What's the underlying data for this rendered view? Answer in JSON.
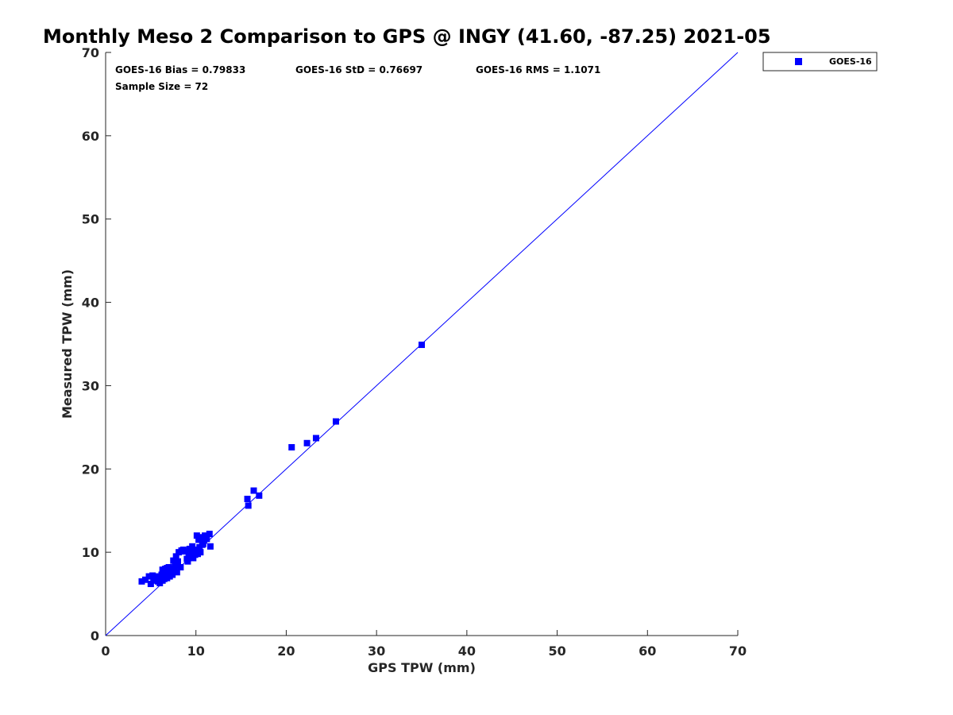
{
  "chart_data": {
    "type": "scatter",
    "title": "Monthly Meso 2 Comparison to GPS @ INGY (41.60, -87.25) 2021-05",
    "xlabel": "GPS TPW (mm)",
    "ylabel": "Measured TPW (mm)",
    "xlim": [
      0,
      70
    ],
    "ylim": [
      0,
      70
    ],
    "xticks": [
      0,
      10,
      20,
      30,
      40,
      50,
      60,
      70
    ],
    "yticks": [
      0,
      10,
      20,
      30,
      40,
      50,
      60,
      70
    ],
    "grid": false,
    "legend_position": "outside-top-right",
    "reference_line": {
      "from": [
        0,
        0
      ],
      "to": [
        70,
        70
      ],
      "color": "#0000ff"
    },
    "stats": {
      "bias": "GOES-16 Bias = 0.79833",
      "std": "GOES-16 StD = 0.76697",
      "rms": "GOES-16 RMS = 1.1071",
      "sample_size": "Sample Size = 72"
    },
    "series": [
      {
        "name": "GOES-16",
        "color": "#0000ff",
        "marker": "square",
        "points": [
          [
            4.0,
            6.5
          ],
          [
            4.4,
            6.7
          ],
          [
            4.8,
            7.1
          ],
          [
            5.0,
            6.2
          ],
          [
            5.2,
            7.2
          ],
          [
            5.4,
            6.8
          ],
          [
            5.6,
            7.1
          ],
          [
            5.8,
            6.5
          ],
          [
            5.9,
            7.0
          ],
          [
            6.0,
            6.3
          ],
          [
            6.1,
            6.9
          ],
          [
            6.2,
            7.3
          ],
          [
            6.3,
            6.6
          ],
          [
            6.4,
            7.6
          ],
          [
            6.5,
            7.0
          ],
          [
            6.6,
            8.0
          ],
          [
            6.7,
            7.4
          ],
          [
            6.8,
            6.9
          ],
          [
            6.9,
            7.7
          ],
          [
            7.0,
            8.2
          ],
          [
            7.1,
            7.1
          ],
          [
            7.2,
            7.6
          ],
          [
            7.3,
            8.0
          ],
          [
            7.4,
            7.3
          ],
          [
            7.5,
            9.0
          ],
          [
            7.6,
            7.8
          ],
          [
            7.7,
            8.4
          ],
          [
            7.8,
            9.5
          ],
          [
            7.9,
            7.6
          ],
          [
            8.0,
            8.9
          ],
          [
            8.1,
            10.0
          ],
          [
            8.3,
            8.2
          ],
          [
            8.6,
            10.3
          ],
          [
            8.8,
            10.1
          ],
          [
            9.0,
            9.2
          ],
          [
            9.1,
            8.9
          ],
          [
            9.3,
            10.4
          ],
          [
            9.5,
            10.0
          ],
          [
            9.6,
            10.7
          ],
          [
            9.7,
            9.3
          ],
          [
            9.9,
            9.7
          ],
          [
            10.0,
            10.3
          ],
          [
            10.1,
            12.0
          ],
          [
            10.2,
            9.8
          ],
          [
            10.3,
            11.5
          ],
          [
            10.4,
            10.6
          ],
          [
            10.5,
            10.0
          ],
          [
            10.6,
            11.8
          ],
          [
            10.8,
            11.0
          ],
          [
            10.9,
            11.4
          ],
          [
            11.0,
            12.0
          ],
          [
            11.2,
            11.6
          ],
          [
            11.5,
            12.2
          ],
          [
            11.6,
            10.7
          ],
          [
            15.7,
            16.4
          ],
          [
            15.8,
            15.6
          ],
          [
            16.4,
            17.4
          ],
          [
            17.0,
            16.8
          ],
          [
            20.6,
            22.6
          ],
          [
            22.3,
            23.1
          ],
          [
            23.3,
            23.7
          ],
          [
            25.5,
            25.7
          ],
          [
            35.0,
            34.9
          ],
          [
            6.3,
            7.9
          ],
          [
            7.0,
            7.2
          ],
          [
            6.5,
            6.8
          ],
          [
            9.2,
            9.6
          ],
          [
            8.4,
            10.2
          ],
          [
            10.7,
            10.9
          ],
          [
            5.3,
            6.6
          ],
          [
            7.2,
            7.9
          ],
          [
            6.8,
            8.1
          ]
        ]
      }
    ]
  }
}
